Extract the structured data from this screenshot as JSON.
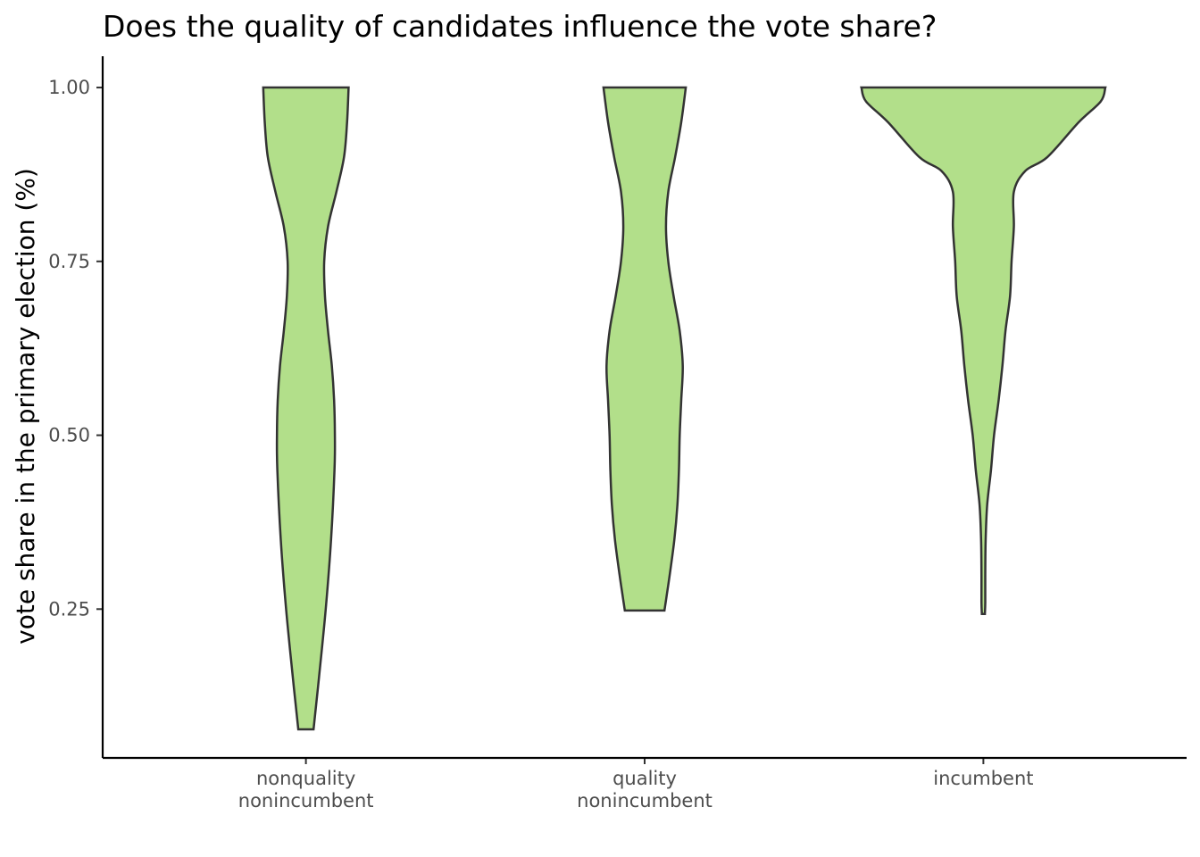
{
  "chart_data": {
    "type": "violin",
    "title": "Does the quality of candidates influence the vote share?",
    "xlabel": "",
    "ylabel": "vote share in the primary election (%)",
    "ylim": [
      0.036,
      1.045
    ],
    "yticks": [
      "0.25",
      "0.50",
      "0.75",
      "1.00"
    ],
    "ytick_values": [
      0.25,
      0.5,
      0.75,
      1.0
    ],
    "grid": false,
    "fill_color": "#b2df8a",
    "outline_color": "#333333",
    "categories": [
      {
        "label_lines": [
          "nonquality",
          "nonincumbent"
        ]
      },
      {
        "label_lines": [
          "quality",
          "nonincumbent"
        ]
      },
      {
        "label_lines": [
          "incumbent"
        ]
      }
    ],
    "violins": [
      {
        "y": [
          0.077,
          0.15,
          0.25,
          0.35,
          0.45,
          0.5,
          0.55,
          0.6,
          0.65,
          0.7,
          0.75,
          0.8,
          0.85,
          0.9,
          0.95,
          1.0
        ],
        "half_width": [
          0.1,
          0.17,
          0.26,
          0.33,
          0.375,
          0.38,
          0.37,
          0.34,
          0.29,
          0.25,
          0.24,
          0.29,
          0.4,
          0.5,
          0.54,
          0.56
        ]
      },
      {
        "y": [
          0.248,
          0.27,
          0.3,
          0.35,
          0.4,
          0.45,
          0.5,
          0.55,
          0.6,
          0.65,
          0.7,
          0.75,
          0.8,
          0.85,
          0.9,
          0.95,
          1.0
        ],
        "half_width": [
          0.26,
          0.29,
          0.33,
          0.39,
          0.43,
          0.45,
          0.46,
          0.48,
          0.5,
          0.46,
          0.38,
          0.31,
          0.28,
          0.31,
          0.4,
          0.48,
          0.54
        ]
      },
      {
        "y": [
          0.243,
          0.26,
          0.3,
          0.35,
          0.4,
          0.45,
          0.5,
          0.55,
          0.6,
          0.65,
          0.7,
          0.75,
          0.8,
          0.85,
          0.88,
          0.9,
          0.95,
          0.98,
          1.0
        ],
        "half_width": [
          0.02,
          0.025,
          0.025,
          0.03,
          0.05,
          0.1,
          0.14,
          0.2,
          0.25,
          0.29,
          0.35,
          0.37,
          0.4,
          0.4,
          0.55,
          0.84,
          1.25,
          1.54,
          1.6
        ]
      }
    ]
  }
}
